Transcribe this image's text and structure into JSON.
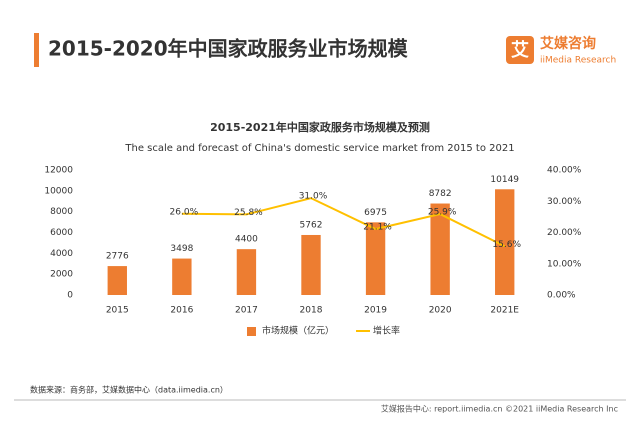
{
  "header": {
    "title": "2015-2020年中国家政服务业市场规模"
  },
  "logo": {
    "name": "艾媒咨询",
    "sub": "iiMedia Research"
  },
  "footer": {
    "source": "数据来源：商务部，艾媒数据中心（data.iimedia.cn）",
    "copyright": "艾媒报告中心: report.iimedia.cn  ©2021  iiMedia Research  Inc"
  },
  "chart_data": {
    "type": "bar",
    "title": "2015-2021年中国家政服务市场规模及预测",
    "subtitle": "The scale and forecast of China's domestic service market from 2015 to 2021",
    "categories": [
      "2015",
      "2016",
      "2017",
      "2018",
      "2019",
      "2020",
      "2021E"
    ],
    "series": [
      {
        "name": "市场规模（亿元）",
        "color": "#ed7d31",
        "values": [
          2776,
          3498,
          4400,
          5762,
          6975,
          8782,
          10149
        ]
      },
      {
        "name": "增长率",
        "type": "line",
        "axis": "y2",
        "color": "#ffc000",
        "values": [
          null,
          26.0,
          25.8,
          31.0,
          21.1,
          25.9,
          15.6
        ],
        "value_labels": [
          null,
          "26.0%",
          "25.8%",
          "31.0%",
          "21.1%",
          "25.9%",
          "15.6%"
        ]
      }
    ],
    "ylim": [
      0,
      12000
    ],
    "yticks": [
      0,
      2000,
      4000,
      6000,
      8000,
      10000,
      12000
    ],
    "y2lim": [
      0,
      40
    ],
    "y2ticks": [
      {
        "value": 0,
        "label": "0.00%"
      },
      {
        "value": 10,
        "label": "10.00%"
      },
      {
        "value": 20,
        "label": "20.00%"
      },
      {
        "value": 30,
        "label": "30.00%"
      },
      {
        "value": 40,
        "label": "40.00%"
      }
    ],
    "grid": false,
    "legend": "bottom"
  }
}
